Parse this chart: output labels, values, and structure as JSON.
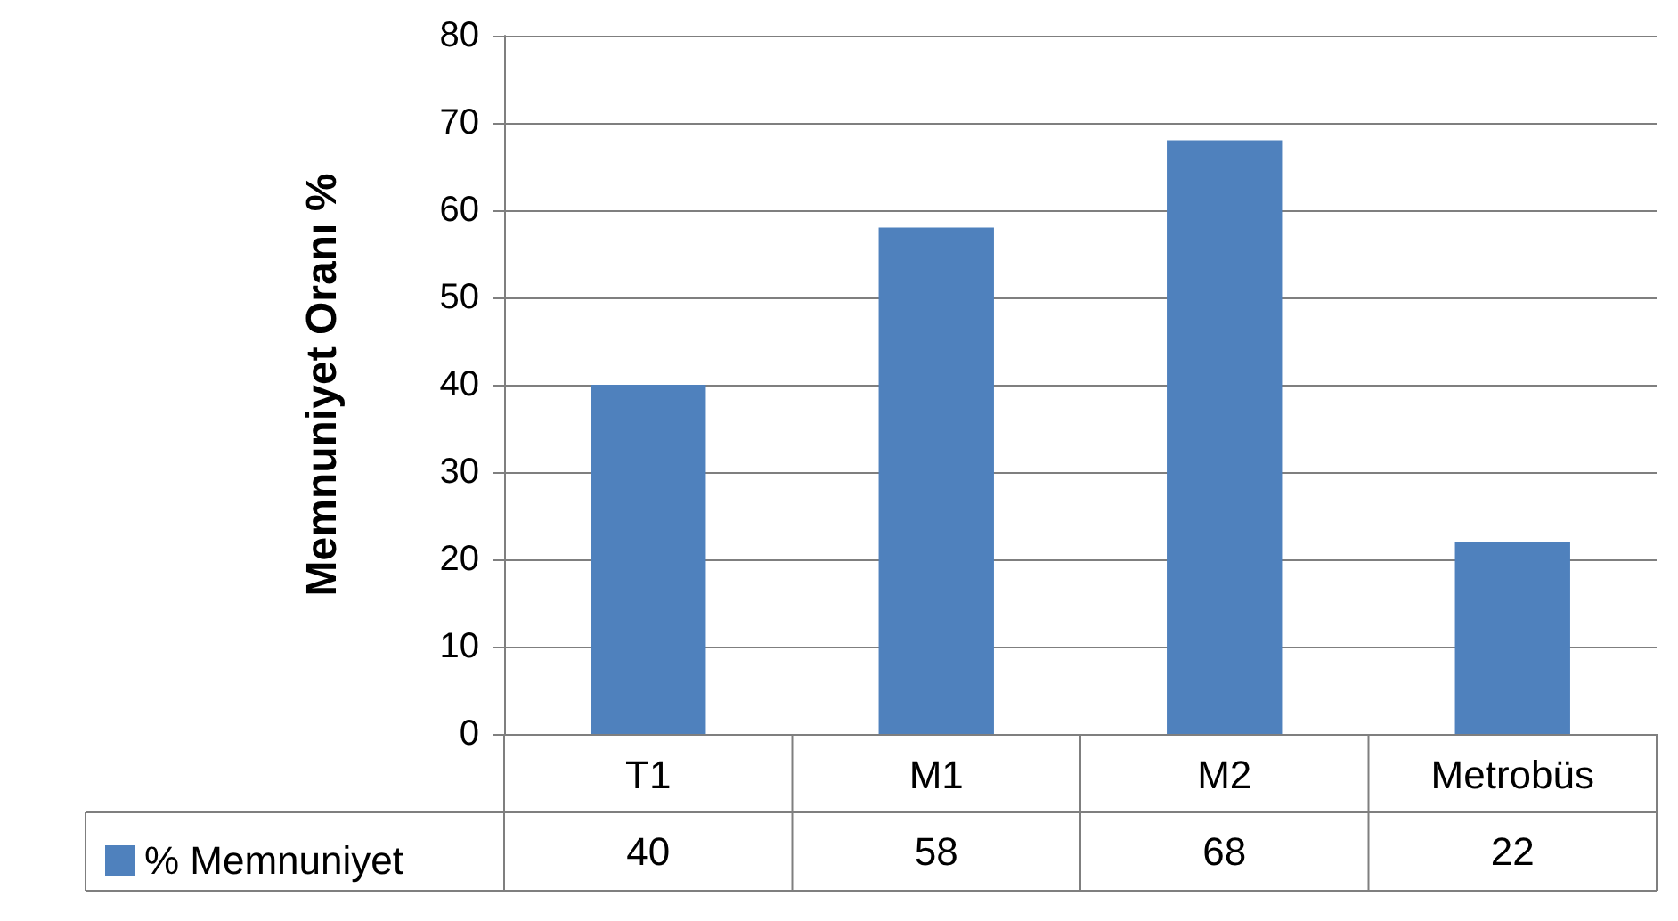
{
  "chart_data": {
    "type": "bar",
    "ylabel": "Memnuniyet Oranı %",
    "categories": [
      "T1",
      "M1",
      "M2",
      "Metrobüs"
    ],
    "series": [
      {
        "name": "% Memnuniyet",
        "color": "#4f81bd",
        "values": [
          40,
          58,
          68,
          22
        ]
      }
    ],
    "ylim": [
      0,
      80
    ],
    "yticks": [
      0,
      10,
      20,
      30,
      40,
      50,
      60,
      70,
      80
    ],
    "grid": "y",
    "legend": "bottom",
    "data_labels": true
  }
}
